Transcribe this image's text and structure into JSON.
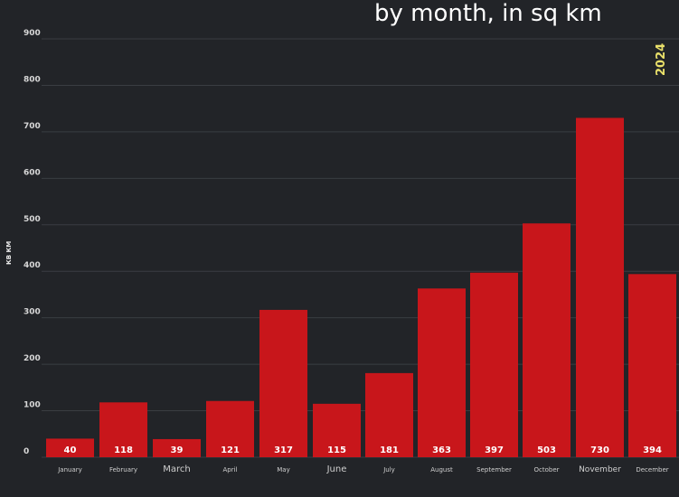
{
  "chart_data": {
    "type": "bar",
    "title": "by month, in sq km",
    "ylabel": "КВ КМ",
    "year_label": "2024",
    "categories": [
      "January",
      "February",
      "March",
      "April",
      "May",
      "June",
      "July",
      "August",
      "September",
      "October",
      "November",
      "December"
    ],
    "values": [
      40,
      118,
      39,
      121,
      317,
      115,
      181,
      363,
      397,
      503,
      730,
      394
    ],
    "data_labels": [
      "40",
      "118",
      "39",
      "121",
      "317",
      "115",
      "181",
      "363",
      "397",
      "503",
      "730",
      "394"
    ],
    "yticks": [
      "0",
      "100",
      "200",
      "300",
      "400",
      "500",
      "600",
      "700",
      "800",
      "900"
    ],
    "ylim": [
      0,
      900
    ],
    "grid": true,
    "colors": {
      "bar": "#c8161b",
      "background": "#222428",
      "grid": "#3a3d42",
      "year_label": "#e9e06a"
    }
  }
}
